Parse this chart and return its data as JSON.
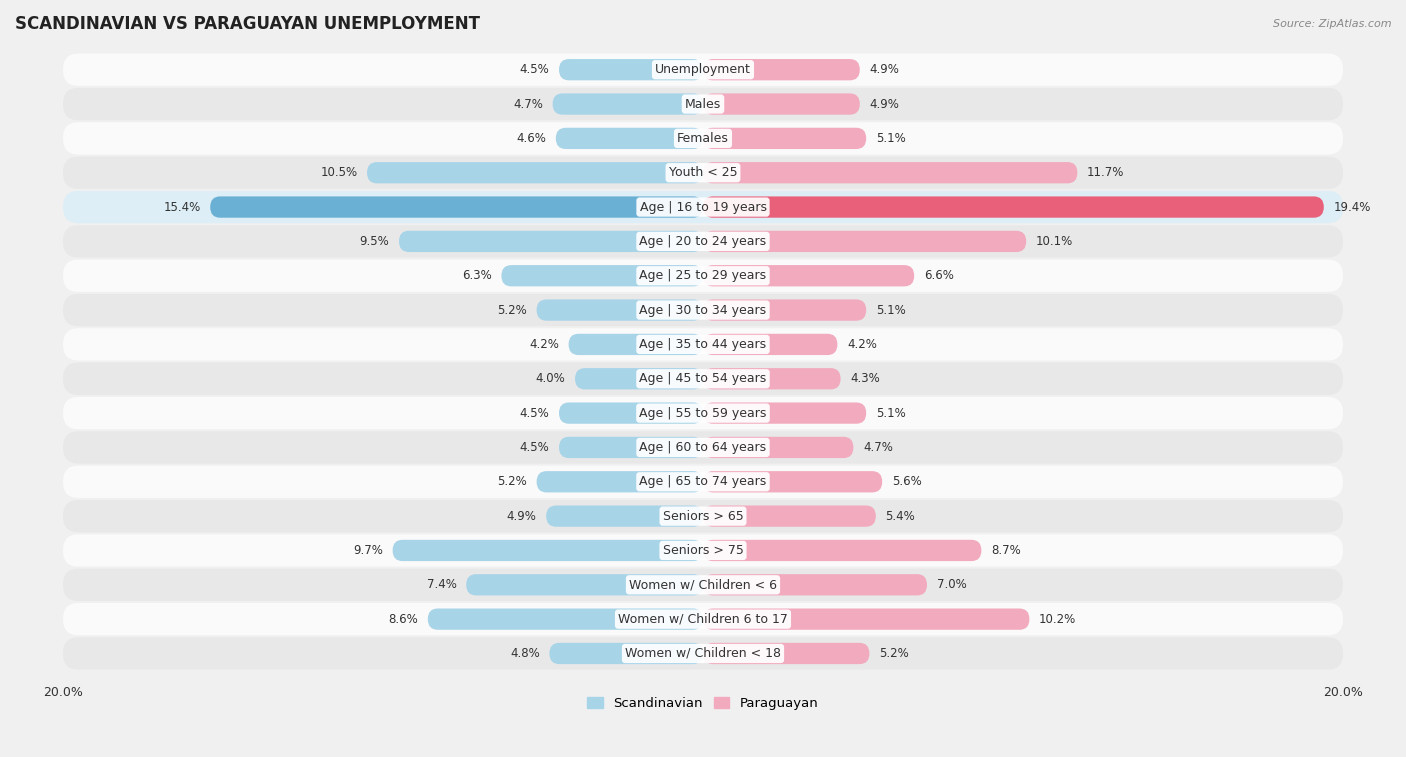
{
  "title": "SCANDINAVIAN VS PARAGUAYAN UNEMPLOYMENT",
  "source": "Source: ZipAtlas.com",
  "categories": [
    "Unemployment",
    "Males",
    "Females",
    "Youth < 25",
    "Age | 16 to 19 years",
    "Age | 20 to 24 years",
    "Age | 25 to 29 years",
    "Age | 30 to 34 years",
    "Age | 35 to 44 years",
    "Age | 45 to 54 years",
    "Age | 55 to 59 years",
    "Age | 60 to 64 years",
    "Age | 65 to 74 years",
    "Seniors > 65",
    "Seniors > 75",
    "Women w/ Children < 6",
    "Women w/ Children 6 to 17",
    "Women w/ Children < 18"
  ],
  "scandinavian": [
    4.5,
    4.7,
    4.6,
    10.5,
    15.4,
    9.5,
    6.3,
    5.2,
    4.2,
    4.0,
    4.5,
    4.5,
    5.2,
    4.9,
    9.7,
    7.4,
    8.6,
    4.8
  ],
  "paraguayan": [
    4.9,
    4.9,
    5.1,
    11.7,
    19.4,
    10.1,
    6.6,
    5.1,
    4.2,
    4.3,
    5.1,
    4.7,
    5.6,
    5.4,
    8.7,
    7.0,
    10.2,
    5.2
  ],
  "scandinavian_color": "#a8d4e8",
  "paraguayan_color": "#f2aabe",
  "highlight_scandinavian_color": "#6ab0d4",
  "highlight_paraguayan_color": "#e8607a",
  "axis_max": 20.0,
  "background_color": "#f0f0f0",
  "row_bg_light": "#fafafa",
  "row_bg_dark": "#e8e8e8",
  "highlight_row_bg": "#ddeef6",
  "label_fontsize": 9.0,
  "title_fontsize": 12,
  "value_fontsize": 8.5
}
